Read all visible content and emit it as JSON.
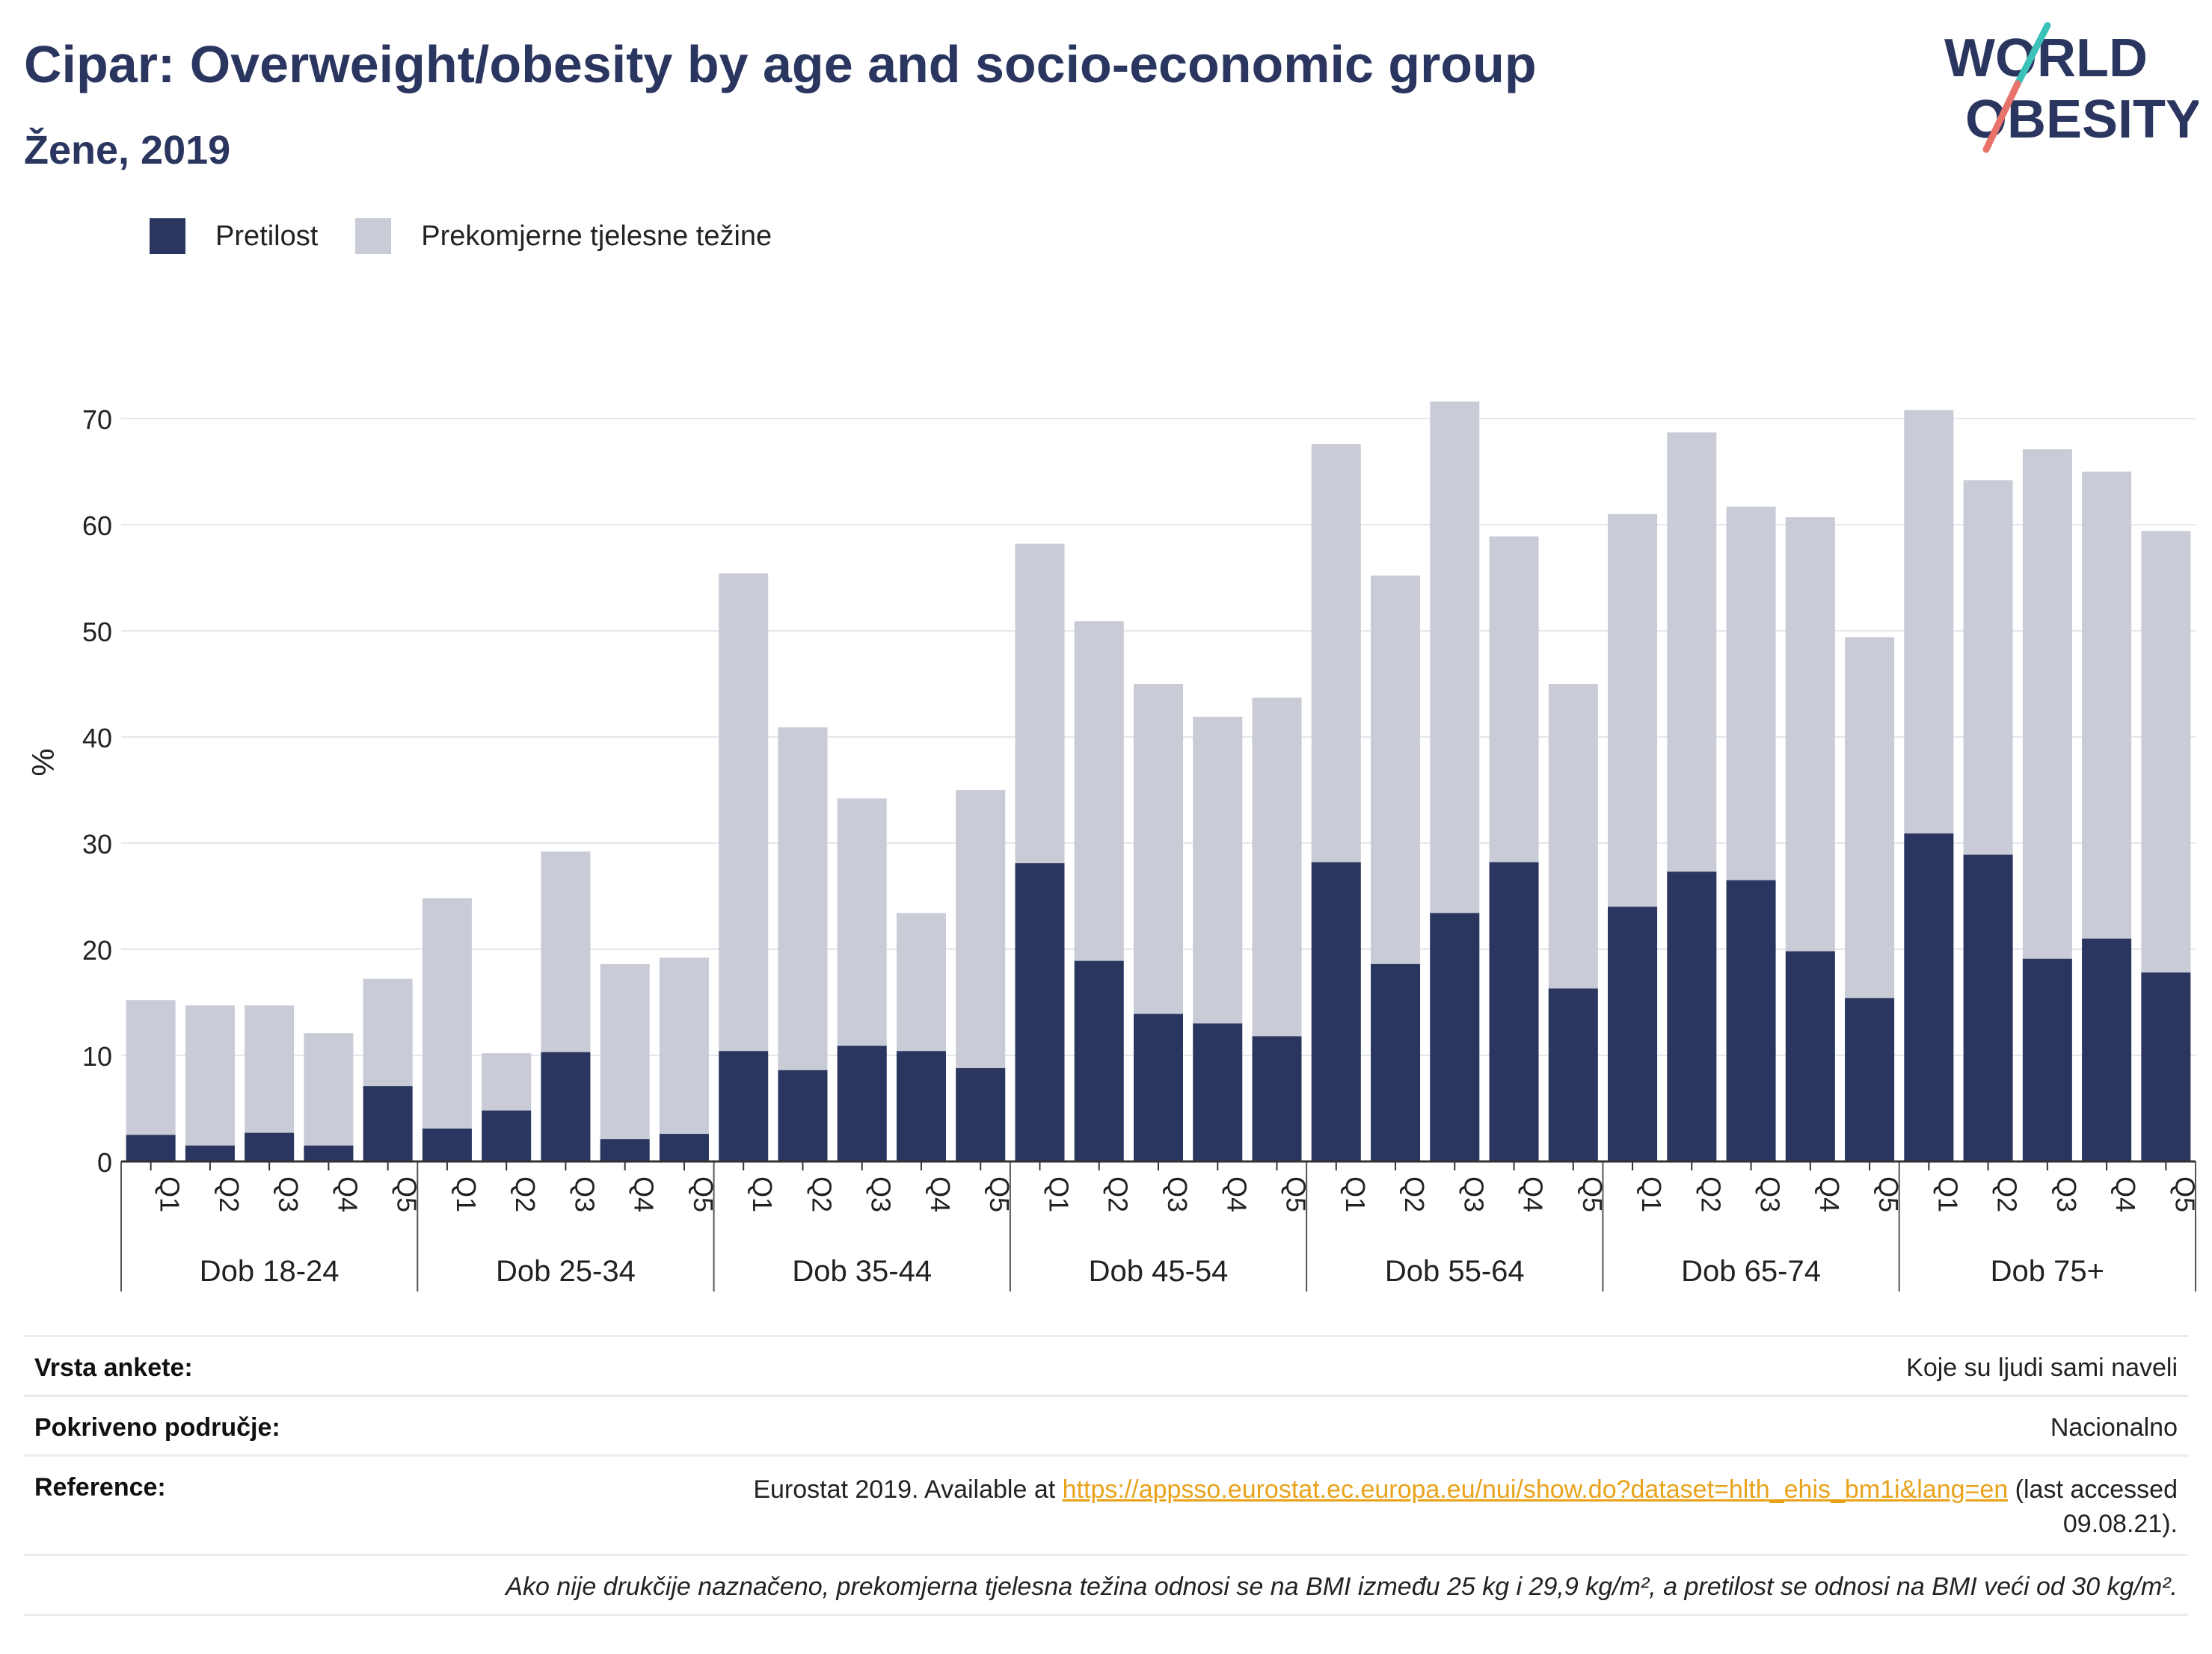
{
  "header": {
    "title": "Cipar: Overweight/obesity by age and socio-economic group",
    "subtitle": "Žene, 2019"
  },
  "logo": {
    "line1": "WORLD",
    "line2": "OBESITY",
    "icon": "world-obesity-slash-logo"
  },
  "legend": {
    "items": [
      {
        "label": "Pretilost",
        "color": "#2a365f"
      },
      {
        "label": "Prekomjerne tjelesne težine",
        "color": "#c9cbd6"
      }
    ]
  },
  "chart_data": {
    "type": "bar",
    "stacked": true,
    "ylabel": "%",
    "xlabel": "",
    "ylim": [
      0,
      75
    ],
    "yticks": [
      0,
      10,
      20,
      30,
      40,
      50,
      60,
      70
    ],
    "grid": true,
    "legend_position": "top-left",
    "groups": [
      {
        "label": "Dob 18-24",
        "categories": [
          "Q1",
          "Q2",
          "Q3",
          "Q4",
          "Q5"
        ],
        "obesity": [
          2.5,
          1.5,
          2.7,
          1.5,
          7.1
        ],
        "total": [
          15.2,
          14.7,
          14.7,
          12.1,
          17.2
        ]
      },
      {
        "label": "Dob 25-34",
        "categories": [
          "Q1",
          "Q2",
          "Q3",
          "Q4",
          "Q5"
        ],
        "obesity": [
          3.1,
          4.8,
          10.3,
          2.1,
          2.6
        ],
        "total": [
          24.8,
          10.2,
          29.2,
          18.6,
          19.2
        ]
      },
      {
        "label": "Dob 35-44",
        "categories": [
          "Q1",
          "Q2",
          "Q3",
          "Q4",
          "Q5"
        ],
        "obesity": [
          10.4,
          8.6,
          10.9,
          10.4,
          8.8
        ],
        "total": [
          55.4,
          40.9,
          34.2,
          23.4,
          35.0
        ]
      },
      {
        "label": "Dob 45-54",
        "categories": [
          "Q1",
          "Q2",
          "Q3",
          "Q4",
          "Q5"
        ],
        "obesity": [
          28.1,
          18.9,
          13.9,
          13.0,
          11.8
        ],
        "total": [
          58.2,
          50.9,
          45.0,
          41.9,
          43.7
        ]
      },
      {
        "label": "Dob 55-64",
        "categories": [
          "Q1",
          "Q2",
          "Q3",
          "Q4",
          "Q5"
        ],
        "obesity": [
          28.2,
          18.6,
          23.4,
          28.2,
          16.3
        ],
        "total": [
          67.6,
          55.2,
          71.6,
          58.9,
          45.0
        ]
      },
      {
        "label": "Dob 65-74",
        "categories": [
          "Q1",
          "Q2",
          "Q3",
          "Q4",
          "Q5"
        ],
        "obesity": [
          24.0,
          27.3,
          26.5,
          19.8,
          15.4
        ],
        "total": [
          61.0,
          68.7,
          61.7,
          60.7,
          49.4
        ]
      },
      {
        "label": "Dob 75+",
        "categories": [
          "Q1",
          "Q2",
          "Q3",
          "Q4",
          "Q5"
        ],
        "obesity": [
          30.9,
          28.9,
          19.1,
          21.0,
          17.8
        ],
        "total": [
          70.8,
          64.2,
          67.1,
          65.0,
          59.4
        ]
      }
    ],
    "series": [
      {
        "name": "Pretilost",
        "color": "#2a365f"
      },
      {
        "name": "Prekomjerne tjelesne težine",
        "color": "#c9cbd6"
      }
    ]
  },
  "info": {
    "survey_label": "Vrsta ankete:",
    "survey_value": "Koje su ljudi sami naveli",
    "coverage_label": "Pokriveno područje:",
    "coverage_value": "Nacionalno",
    "reference_label": "Reference:",
    "reference_prefix": "Eurostat 2019. Available at ",
    "reference_link": "https://appsso.eurostat.ec.europa.eu/nui/show.do?dataset=hlth_ehis_bm1i&lang=en",
    "reference_suffix": " (last accessed 09.08.21).",
    "note": "Ako nije drukčije naznačeno, prekomjerna tjelesna težina odnosi se na BMI između 25 kg i 29,9 kg/m², a pretilost se odnosi na BMI veći od 30 kg/m²."
  }
}
